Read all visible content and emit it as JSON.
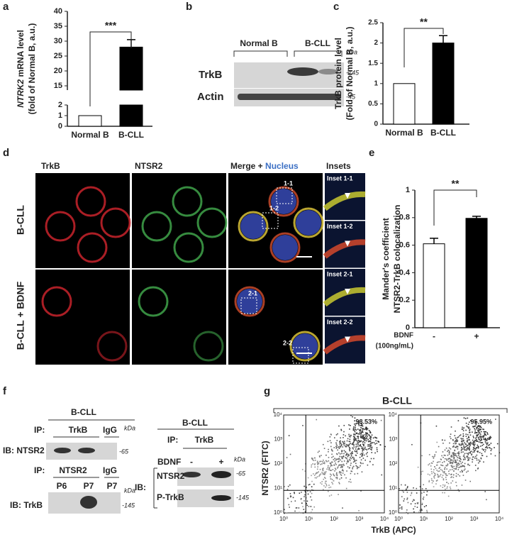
{
  "chart_data": [
    {
      "type": "bar",
      "ylabel_italic": "NTRK2",
      "ylabel": [
        "mRNA level",
        "(fold of Normal B, a.u.)"
      ],
      "categories": [
        "Normal B",
        "B-CLL"
      ],
      "values": [
        1,
        28
      ],
      "errors": [
        null,
        2.5
      ],
      "colors": [
        "#ffffff",
        "#000000"
      ],
      "ylim": [
        0,
        40
      ],
      "axis_break": [
        2,
        15
      ],
      "yticks": [
        0,
        1,
        2,
        15,
        20,
        25,
        30,
        35,
        40
      ],
      "significance": "***"
    },
    {
      "type": "bar",
      "ylabel": [
        "TrkB protein level",
        "(Fold of Normal B, a.u.)"
      ],
      "categories": [
        "Normal B",
        "B-CLL"
      ],
      "values": [
        1,
        2
      ],
      "errors": [
        null,
        0.18
      ],
      "colors": [
        "#ffffff",
        "#000000"
      ],
      "ylim": [
        0,
        2.5
      ],
      "yticks": [
        0,
        0.5,
        1,
        1.5,
        2,
        2.5
      ],
      "significance": "**"
    },
    {
      "type": "bar",
      "ylabel": [
        "Mander's coefficient",
        "NTSR2-TrkB colocalization"
      ],
      "categories": [
        "-",
        "+"
      ],
      "values": [
        0.61,
        0.795
      ],
      "errors": [
        0.04,
        0.015
      ],
      "colors": [
        "#ffffff",
        "#000000"
      ],
      "ylim": [
        0,
        1
      ],
      "yticks": [
        0,
        0.2,
        0.4,
        0.6,
        0.8,
        1
      ],
      "significance": "**",
      "x_annotation": [
        "BDNF",
        "(100ng/mL)"
      ]
    }
  ],
  "panel_labels": [
    "a",
    "b",
    "c",
    "d",
    "e",
    "f",
    "g"
  ],
  "b": {
    "groups": [
      "Normal B",
      "B-CLL"
    ],
    "kda": "kDa",
    "rows": [
      {
        "label": "TrkB",
        "marker": "-145"
      },
      {
        "label": "Actin",
        "marker": "-45"
      }
    ]
  },
  "d": {
    "columns": [
      "TrkB",
      "NTSR2",
      "Merge +",
      "Nucleus",
      "Insets"
    ],
    "rows": [
      "B-CLL",
      "B-CLL + BDNF"
    ],
    "insets": [
      "Inset 1-1",
      "Inset 1-2",
      "Inset 2-1",
      "Inset 2-2"
    ],
    "boxes": [
      "1-1",
      "1-2",
      "2-1",
      "2-2"
    ]
  },
  "f": {
    "left": {
      "title": "B-CLL",
      "kda": "kDa",
      "ip1": {
        "ip": "IP:",
        "lanes": [
          "TrkB",
          "IgG"
        ],
        "ib": "IB: NTSR2",
        "marker": "-65"
      },
      "ip2": {
        "ip": "IP:",
        "lanes": [
          "NTSR2",
          "IgG"
        ],
        "sub": [
          "P6",
          "P7",
          "P7"
        ],
        "ib": "IB: TrkB",
        "marker": "-145"
      }
    },
    "right": {
      "title": "B-CLL",
      "ip": "IP:",
      "lane": "TrkB",
      "treat": "BDNF",
      "levels": [
        "-",
        "+"
      ],
      "kda": "kDa",
      "ib": "IB:",
      "rows": [
        {
          "label": "NTSR2",
          "marker": "-65"
        },
        {
          "label": "P-TrkB",
          "marker": "-145"
        }
      ]
    }
  },
  "g": {
    "title": "B-CLL",
    "ylabel": "NTSR2 (FITC)",
    "xlabel": "TrkB (APC)",
    "ticks": [
      "10⁰",
      "10¹",
      "10²",
      "10³",
      "10⁴"
    ],
    "percents": [
      "98.53%",
      "95.95%"
    ]
  }
}
